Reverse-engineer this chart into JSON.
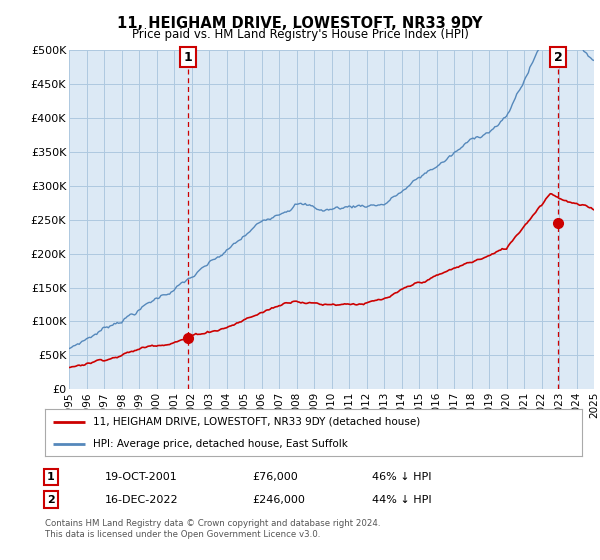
{
  "title": "11, HEIGHAM DRIVE, LOWESTOFT, NR33 9DY",
  "subtitle": "Price paid vs. HM Land Registry's House Price Index (HPI)",
  "ylim": [
    0,
    500000
  ],
  "yticks": [
    0,
    50000,
    100000,
    150000,
    200000,
    250000,
    300000,
    350000,
    400000,
    450000,
    500000
  ],
  "ytick_labels": [
    "£0",
    "£50K",
    "£100K",
    "£150K",
    "£200K",
    "£250K",
    "£300K",
    "£350K",
    "£400K",
    "£450K",
    "£500K"
  ],
  "background_color": "#ffffff",
  "plot_bg_color": "#dce9f5",
  "grid_color": "#aec8e0",
  "hpi_color": "#5588bb",
  "price_color": "#cc0000",
  "marker1_year": 2001.8,
  "marker1_price": 76000,
  "marker2_year": 2022.95,
  "marker2_price": 246000,
  "legend_line1": "11, HEIGHAM DRIVE, LOWESTOFT, NR33 9DY (detached house)",
  "legend_line2": "HPI: Average price, detached house, East Suffolk",
  "table_row1": [
    "1",
    "19-OCT-2001",
    "£76,000",
    "46% ↓ HPI"
  ],
  "table_row2": [
    "2",
    "16-DEC-2022",
    "£246,000",
    "44% ↓ HPI"
  ],
  "footnote1": "Contains HM Land Registry data © Crown copyright and database right 2024.",
  "footnote2": "This data is licensed under the Open Government Licence v3.0."
}
